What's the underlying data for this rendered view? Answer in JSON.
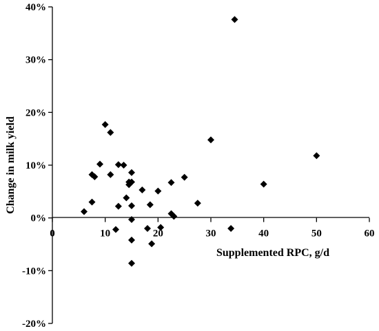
{
  "chart_data": {
    "type": "scatter",
    "title": "",
    "xlabel": "Supplemented RPC, g/d",
    "ylabel": "Change in milk yield",
    "xlim": [
      0,
      60
    ],
    "ylim": [
      -20,
      40
    ],
    "x_ticks": [
      "0",
      "10",
      "20",
      "30",
      "40",
      "50",
      "60"
    ],
    "y_ticks": [
      "-20%",
      "-10%",
      "0%",
      "10%",
      "20%",
      "30%",
      "40%"
    ],
    "grid": false,
    "legend": "none",
    "marker": "diamond",
    "marker_color": "#000000",
    "series": [
      {
        "points": [
          {
            "x": 6,
            "y": 1.2
          },
          {
            "x": 7.5,
            "y": 3.0
          },
          {
            "x": 7.5,
            "y": 8.2
          },
          {
            "x": 8,
            "y": 7.8
          },
          {
            "x": 9,
            "y": 10.2
          },
          {
            "x": 10,
            "y": 17.7
          },
          {
            "x": 11,
            "y": 16.2
          },
          {
            "x": 11,
            "y": 8.2
          },
          {
            "x": 12,
            "y": -2.2
          },
          {
            "x": 12.5,
            "y": 10.1
          },
          {
            "x": 12.5,
            "y": 2.2
          },
          {
            "x": 13.5,
            "y": 10.0
          },
          {
            "x": 14,
            "y": 3.8
          },
          {
            "x": 14.5,
            "y": 6.8
          },
          {
            "x": 14.5,
            "y": 6.3
          },
          {
            "x": 15,
            "y": 6.8
          },
          {
            "x": 15,
            "y": 8.6
          },
          {
            "x": 15,
            "y": 2.3
          },
          {
            "x": 15,
            "y": -0.3
          },
          {
            "x": 15,
            "y": -4.2
          },
          {
            "x": 15,
            "y": -8.6
          },
          {
            "x": 17,
            "y": 5.3
          },
          {
            "x": 18,
            "y": -2.0
          },
          {
            "x": 18.5,
            "y": 2.5
          },
          {
            "x": 18.8,
            "y": -4.9
          },
          {
            "x": 20,
            "y": 5.1
          },
          {
            "x": 20.5,
            "y": -1.8
          },
          {
            "x": 22.5,
            "y": 6.7
          },
          {
            "x": 22.5,
            "y": 0.8
          },
          {
            "x": 23,
            "y": 0.3
          },
          {
            "x": 25,
            "y": 7.7
          },
          {
            "x": 27.5,
            "y": 2.8
          },
          {
            "x": 30,
            "y": 14.8
          },
          {
            "x": 33.8,
            "y": -2.0
          },
          {
            "x": 34.5,
            "y": 37.6
          },
          {
            "x": 40,
            "y": 6.4
          },
          {
            "x": 50,
            "y": 11.8
          }
        ]
      }
    ]
  }
}
